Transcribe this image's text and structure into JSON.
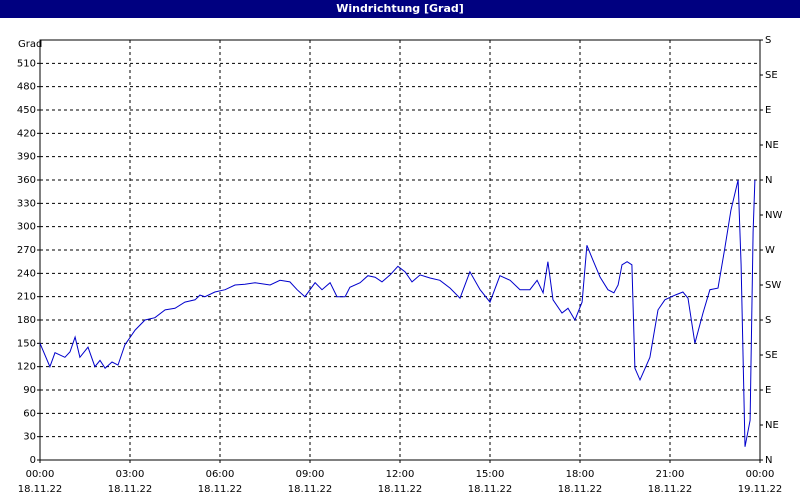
{
  "chart_data": {
    "type": "line",
    "title": "Windrichtung [Grad]",
    "y_label": "Grad",
    "xlim": [
      0,
      24
    ],
    "ylim": [
      0,
      540
    ],
    "y2lim": [
      0,
      540
    ],
    "xticks": [
      {
        "value": 0,
        "label": "00:00",
        "date": "18.11.22"
      },
      {
        "value": 3,
        "label": "03:00",
        "date": "18.11.22"
      },
      {
        "value": 6,
        "label": "06:00",
        "date": "18.11.22"
      },
      {
        "value": 9,
        "label": "09:00",
        "date": "18.11.22"
      },
      {
        "value": 12,
        "label": "12:00",
        "date": "18.11.22"
      },
      {
        "value": 15,
        "label": "15:00",
        "date": "18.11.22"
      },
      {
        "value": 18,
        "label": "18:00",
        "date": "18.11.22"
      },
      {
        "value": 21,
        "label": "21:00",
        "date": "18.11.22"
      },
      {
        "value": 24,
        "label": "00:00",
        "date": "19.11.22"
      }
    ],
    "yticks": [
      0,
      30,
      60,
      90,
      120,
      150,
      180,
      210,
      240,
      270,
      300,
      330,
      360,
      390,
      420,
      450,
      480,
      510
    ],
    "y2ticks": [
      {
        "value": 0,
        "label": "N"
      },
      {
        "value": 45,
        "label": "NE"
      },
      {
        "value": 90,
        "label": "E"
      },
      {
        "value": 135,
        "label": "SE"
      },
      {
        "value": 180,
        "label": "S"
      },
      {
        "value": 225,
        "label": "SW"
      },
      {
        "value": 270,
        "label": "W"
      },
      {
        "value": 315,
        "label": "NW"
      },
      {
        "value": 360,
        "label": "N"
      },
      {
        "value": 405,
        "label": "NE"
      },
      {
        "value": 450,
        "label": "E"
      },
      {
        "value": 495,
        "label": "SE"
      },
      {
        "value": 540,
        "label": "S"
      }
    ],
    "grid": true,
    "x": [
      0,
      0.33,
      0.5,
      0.83,
      1,
      1.17,
      1.33,
      1.6,
      1.83,
      2,
      2.17,
      2.4,
      2.6,
      2.83,
      3.17,
      3.5,
      3.83,
      4.17,
      4.5,
      4.83,
      5.17,
      5.33,
      5.5,
      5.83,
      6.17,
      6.5,
      6.83,
      7.17,
      7.67,
      8,
      8.33,
      8.57,
      8.83,
      9.17,
      9.4,
      9.67,
      9.9,
      10.17,
      10.33,
      10.67,
      10.93,
      11.17,
      11.4,
      11.67,
      11.93,
      12.17,
      12.4,
      12.67,
      13,
      13.33,
      13.67,
      14,
      14.33,
      14.67,
      15,
      15.33,
      15.67,
      16,
      16.33,
      16.57,
      16.77,
      16.93,
      17.1,
      17.4,
      17.6,
      17.83,
      18.07,
      18.23,
      18.43,
      18.67,
      18.93,
      19.13,
      19.27,
      19.4,
      19.57,
      19.73,
      19.83,
      20,
      20.33,
      20.6,
      20.83,
      21.17,
      21.43,
      21.6,
      21.83,
      22.1,
      22.33,
      22.6,
      22.83,
      23.03,
      23.27,
      23.37,
      23.5,
      23.67,
      23.77,
      23.83
    ],
    "series": [
      {
        "name": "Windrichtung",
        "color": "#0000cc",
        "values": [
          150,
          120,
          138,
          132,
          139,
          158,
          132,
          145,
          120,
          128,
          118,
          126,
          122,
          148,
          167,
          180,
          183,
          193,
          195,
          203,
          206,
          212,
          210,
          216,
          219,
          225,
          226,
          228,
          225,
          231,
          229,
          219,
          210,
          228,
          219,
          228,
          210,
          210,
          222,
          228,
          237,
          235,
          229,
          238,
          249,
          242,
          229,
          238,
          234,
          231,
          221,
          208,
          242,
          219,
          203,
          237,
          231,
          219,
          219,
          231,
          215,
          255,
          206,
          189,
          195,
          180,
          203,
          276,
          257,
          235,
          219,
          215,
          225,
          251,
          255,
          251,
          118,
          103,
          132,
          193,
          206,
          212,
          216,
          208,
          150,
          189,
          219,
          221,
          273,
          321,
          360,
          251,
          17,
          51,
          293,
          360
        ]
      }
    ]
  }
}
